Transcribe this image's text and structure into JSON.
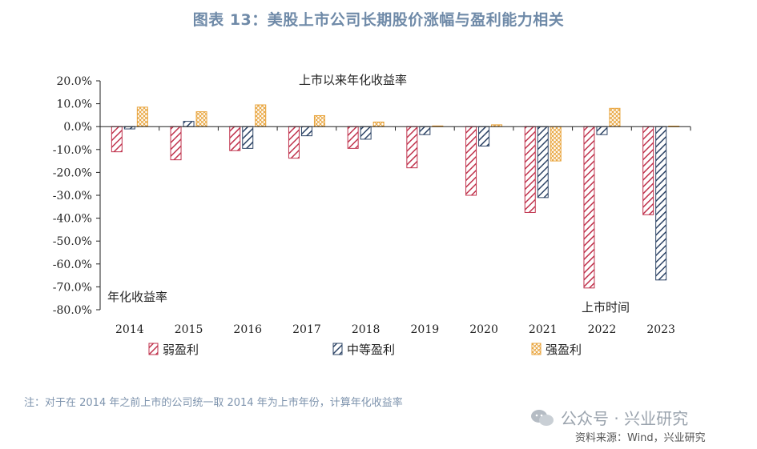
{
  "title": "图表 13：美股上市公司长期股价涨幅与盈利能力相关",
  "note": "注：对于在 2014 年之前上市的公司统一取 2014 年为上市年份，计算年化收益率",
  "watermark": "公众号 · 兴业研究",
  "source": "资料来源：Wind，兴业研究",
  "chart_data": {
    "type": "bar",
    "chart_title": "上市以来年化收益率",
    "ylabel": "年化收益率",
    "xlabel": "上市时间",
    "categories": [
      "2014",
      "2015",
      "2016",
      "2017",
      "2018",
      "2019",
      "2020",
      "2021",
      "2022",
      "2023"
    ],
    "ylim": [
      -80,
      20
    ],
    "yticks": [
      "20.0%",
      "10.0%",
      "0.0%",
      "-10.0%",
      "-20.0%",
      "-30.0%",
      "-40.0%",
      "-50.0%",
      "-60.0%",
      "-70.0%",
      "-80.0%"
    ],
    "legend_position": "bottom",
    "series": [
      {
        "name": "弱盈利",
        "color": "#c0334d",
        "pattern": "diagonal",
        "values": [
          -11.0,
          -14.5,
          -10.5,
          -13.8,
          -9.5,
          -18.0,
          -30.0,
          -37.5,
          -70.5,
          -38.5
        ]
      },
      {
        "name": "中等盈利",
        "color": "#2d4466",
        "pattern": "diagonal",
        "values": [
          -1.0,
          2.3,
          -9.5,
          -4.0,
          -5.5,
          -3.5,
          -8.5,
          -31.0,
          -3.5,
          -67.0
        ]
      },
      {
        "name": "强盈利",
        "color": "#e8a33a",
        "pattern": "crosshatch",
        "values": [
          8.5,
          6.5,
          9.5,
          4.8,
          2.0,
          0.3,
          0.8,
          -15.0,
          8.0,
          0.2
        ]
      }
    ]
  }
}
